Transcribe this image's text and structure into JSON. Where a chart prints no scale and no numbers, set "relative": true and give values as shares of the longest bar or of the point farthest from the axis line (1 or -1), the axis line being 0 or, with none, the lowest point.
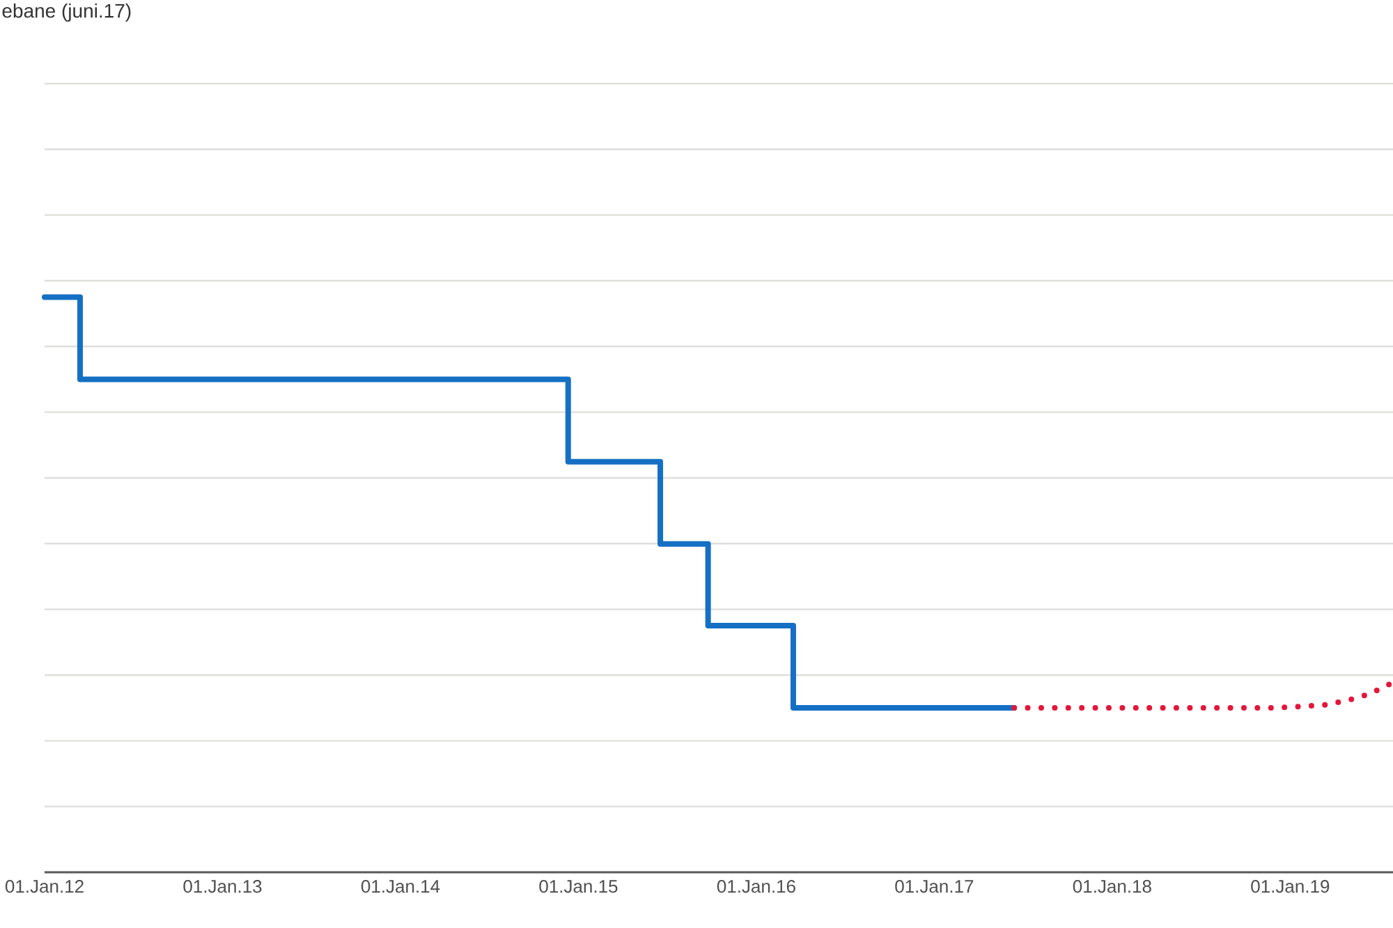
{
  "chart_data": {
    "type": "step",
    "title": "ebane (juni.17)",
    "relative": true,
    "grid": "y",
    "xlim": [
      "2012-01-01",
      "2019-07-31"
    ],
    "xticks": [
      {
        "value": "2012-01-01",
        "label": "01.Jan.12"
      },
      {
        "value": "2013-01-01",
        "label": "01.Jan.13"
      },
      {
        "value": "2014-01-01",
        "label": "01.Jan.14"
      },
      {
        "value": "2015-01-01",
        "label": "01.Jan.15"
      },
      {
        "value": "2016-01-01",
        "label": "01.Jan.16"
      },
      {
        "value": "2017-01-01",
        "label": "01.Jan.17"
      },
      {
        "value": "2018-01-01",
        "label": "01.Jan.18"
      },
      {
        "value": "2019-01-01",
        "label": "01.Jan.19"
      }
    ],
    "series": [
      {
        "color": "#1570c4",
        "x": [
          "2012-01-01",
          "2012-03-14",
          "2014-12-11",
          "2015-06-18",
          "2015-09-24",
          "2016-03-17",
          "2017-06-14"
        ],
        "values": [
          1,
          0.857,
          0.714,
          0.571,
          0.429,
          0.286,
          0.286
        ]
      },
      {
        "type": "line",
        "line_style": "dotted",
        "color": "#e4163a",
        "x": [
          "2017-06-14",
          "2018-01-01",
          "2018-07-01",
          "2018-12-01",
          "2019-01-19",
          "2019-03-13",
          "2019-04-30",
          "2019-06-13",
          "2019-07-31"
        ],
        "values": [
          0.286,
          0.286,
          0.286,
          0.286,
          0.288,
          0.291,
          0.299,
          0.31,
          0.33
        ]
      }
    ]
  }
}
